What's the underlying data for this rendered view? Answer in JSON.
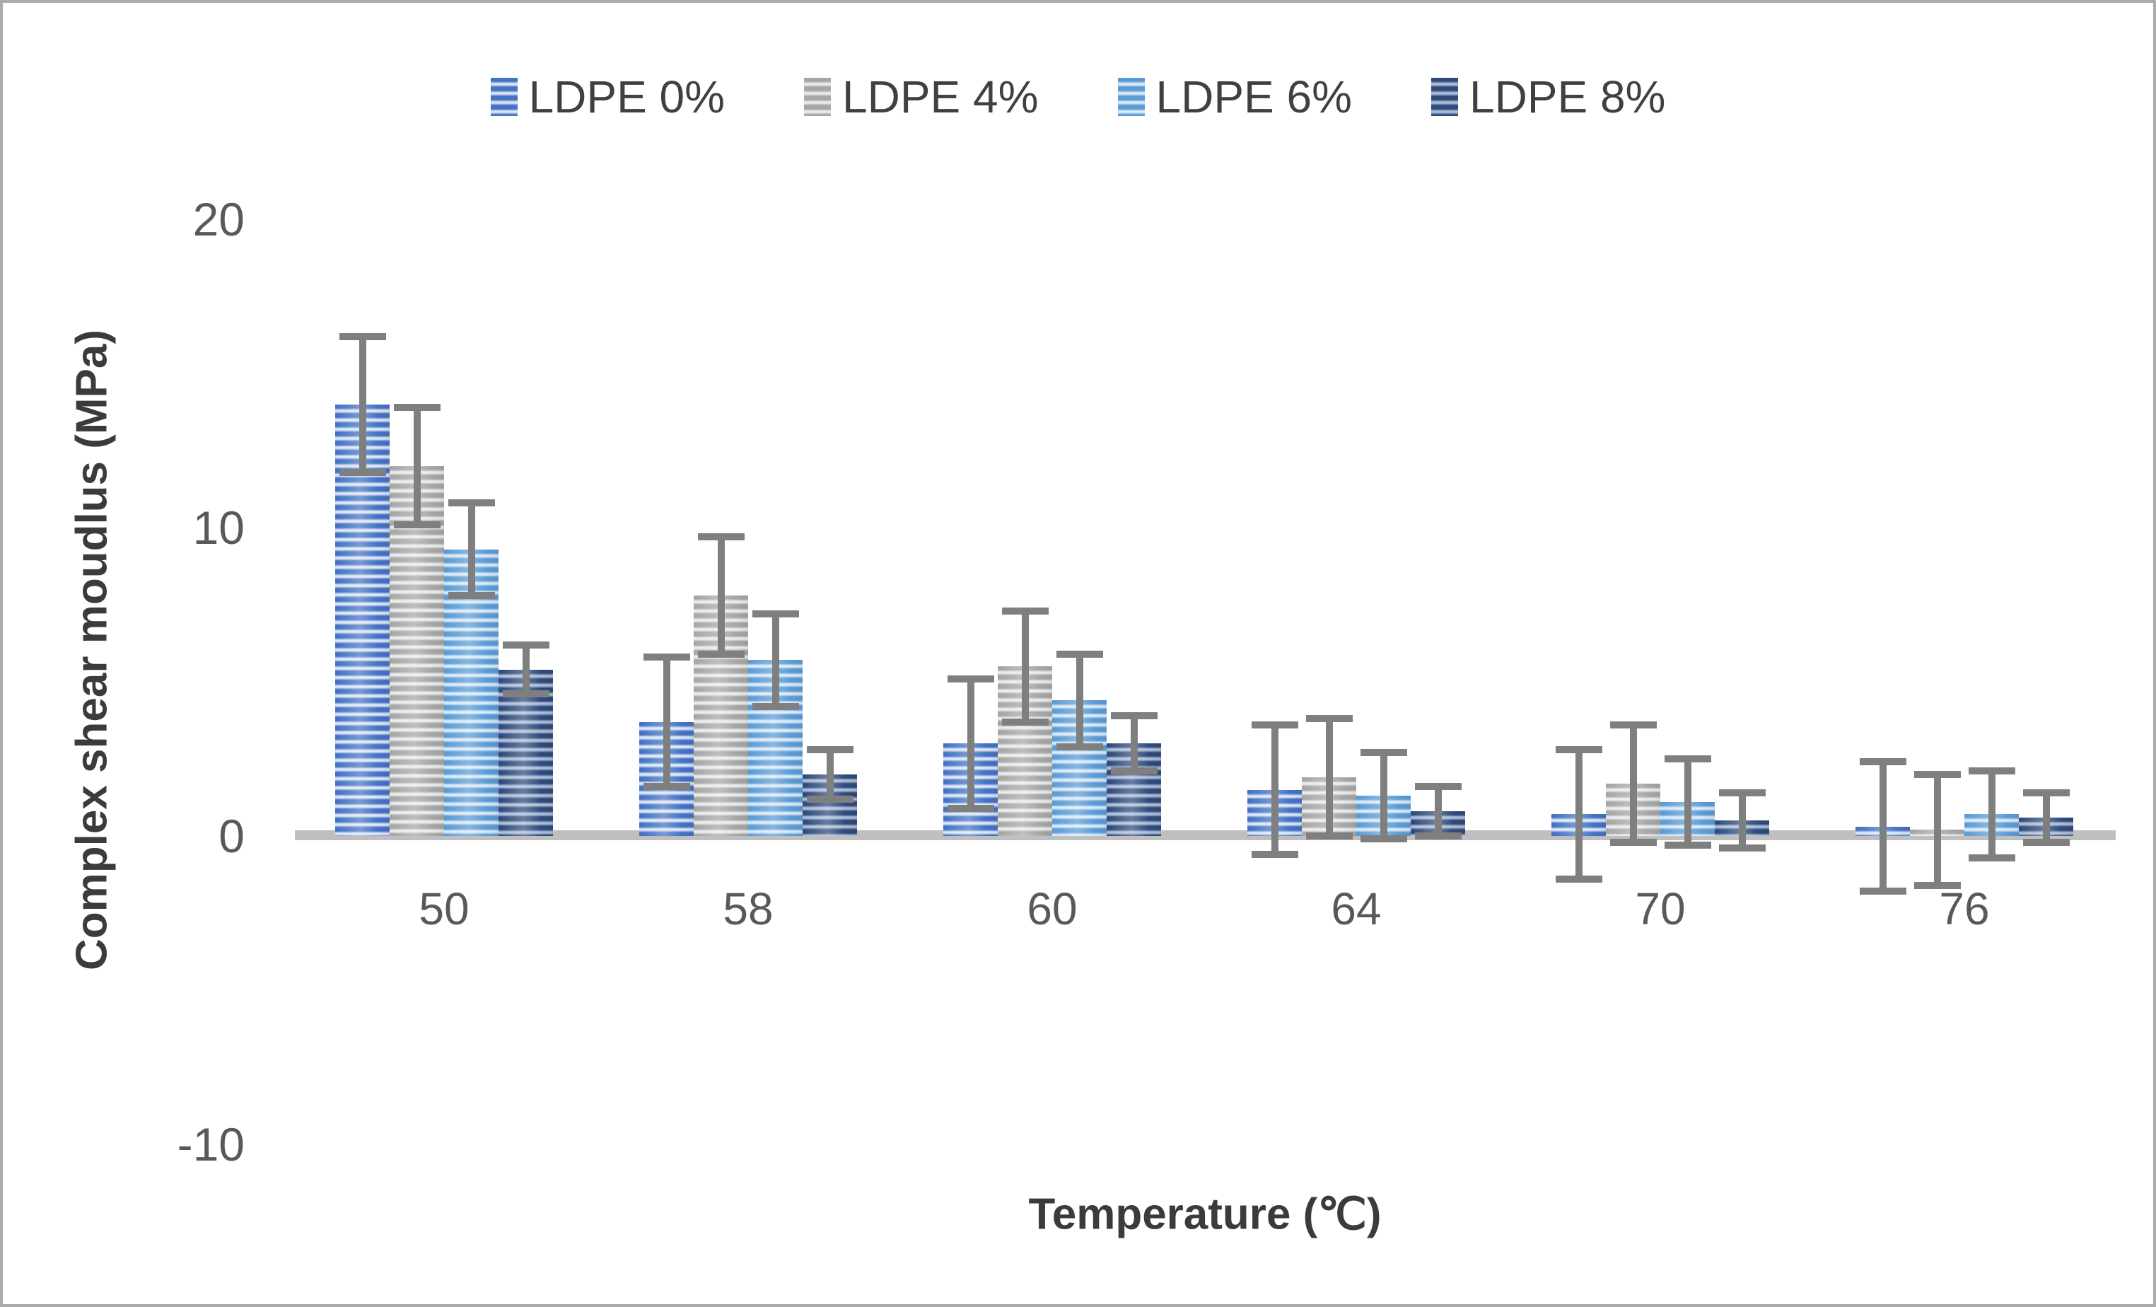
{
  "chart_data": {
    "type": "bar",
    "title": "",
    "xlabel": "Temperature (℃)",
    "ylabel": "Complex shear moudlus (MPa)",
    "categories": [
      "50",
      "58",
      "60",
      "64",
      "70",
      "76"
    ],
    "series": [
      {
        "name": "LDPE 0%",
        "values": [
          14.0,
          3.7,
          3.0,
          1.5,
          0.7,
          0.3
        ],
        "errors": [
          2.2,
          2.1,
          2.1,
          2.1,
          2.1,
          2.1
        ],
        "stripe_dark": "#4472C4",
        "stripe_light": "#DCE6F5"
      },
      {
        "name": "LDPE 4%",
        "values": [
          12.0,
          7.8,
          5.5,
          1.9,
          1.7,
          0.2
        ],
        "errors": [
          1.9,
          1.9,
          1.8,
          1.9,
          1.9,
          1.8
        ],
        "stripe_dark": "#A6A6A6",
        "stripe_light": "#EBEBEB"
      },
      {
        "name": "LDPE 6%",
        "values": [
          9.3,
          5.7,
          4.4,
          1.3,
          1.1,
          0.7
        ],
        "errors": [
          1.5,
          1.5,
          1.5,
          1.4,
          1.4,
          1.4
        ],
        "stripe_dark": "#5B9BD5",
        "stripe_light": "#D9EAF9"
      },
      {
        "name": "LDPE 8%",
        "values": [
          5.4,
          2.0,
          3.0,
          0.8,
          0.5,
          0.6
        ],
        "errors": [
          0.8,
          0.8,
          0.9,
          0.8,
          0.9,
          0.8
        ],
        "stripe_dark": "#2E4B7C",
        "stripe_light": "#AFBDD8"
      }
    ],
    "ylim": [
      -10,
      20
    ],
    "yticks": [
      20,
      10,
      0,
      -10
    ],
    "legend_position": "top",
    "grid": false,
    "error_bars": true
  },
  "colors": {
    "background": "#FFFFFF",
    "border": "#ABABAB",
    "axis_line": "#BFBFBF",
    "error_bar": "#7F7F7F",
    "tick_text": "#595959",
    "title_text": "#3B3B3B",
    "legend_text": "#404040"
  }
}
